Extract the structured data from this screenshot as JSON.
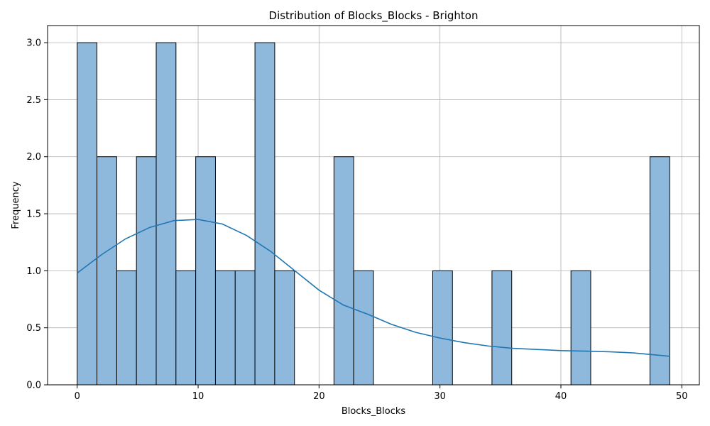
{
  "chart_data": {
    "type": "bar",
    "title": "Distribution of Blocks_Blocks - Brighton",
    "xlabel": "Blocks_Blocks",
    "ylabel": "Frequency",
    "xlim": [
      -2.45,
      51.45
    ],
    "ylim": [
      0,
      3.15
    ],
    "xticks": [
      0,
      10,
      20,
      30,
      40,
      50
    ],
    "yticks": [
      0.0,
      0.5,
      1.0,
      1.5,
      2.0,
      2.5,
      3.0
    ],
    "xtick_labels": [
      "0",
      "10",
      "20",
      "30",
      "40",
      "50"
    ],
    "ytick_labels": [
      "0.0",
      "0.5",
      "1.0",
      "1.5",
      "2.0",
      "2.5",
      "3.0"
    ],
    "grid": true,
    "bin_edges": [
      0,
      1.633,
      3.267,
      4.9,
      6.533,
      8.167,
      9.8,
      11.433,
      13.067,
      14.7,
      16.333,
      17.967,
      19.6,
      21.233,
      22.867,
      24.5,
      26.133,
      27.767,
      29.4,
      31.033,
      32.667,
      34.3,
      35.933,
      37.567,
      39.2,
      40.833,
      42.467,
      44.1,
      45.733,
      47.367,
      49.0
    ],
    "values": [
      3,
      2,
      1,
      2,
      3,
      1,
      2,
      1,
      1,
      3,
      1,
      0,
      0,
      2,
      1,
      0,
      0,
      0,
      1,
      0,
      0,
      1,
      0,
      0,
      0,
      1,
      0,
      0,
      0,
      2
    ],
    "bar_color": "#8fb9dc",
    "edge_color": "#000000",
    "kde": {
      "color": "#1f77b4",
      "x": [
        0,
        2,
        4,
        6,
        8,
        10,
        12,
        14,
        16,
        18,
        20,
        22,
        24,
        26,
        28,
        30,
        32,
        34,
        36,
        38,
        40,
        42,
        44,
        46,
        48,
        49
      ],
      "y": [
        0.98,
        1.14,
        1.28,
        1.38,
        1.44,
        1.45,
        1.41,
        1.31,
        1.17,
        1.0,
        0.83,
        0.7,
        0.62,
        0.53,
        0.46,
        0.41,
        0.37,
        0.34,
        0.32,
        0.31,
        0.3,
        0.295,
        0.29,
        0.28,
        0.26,
        0.25
      ]
    }
  }
}
